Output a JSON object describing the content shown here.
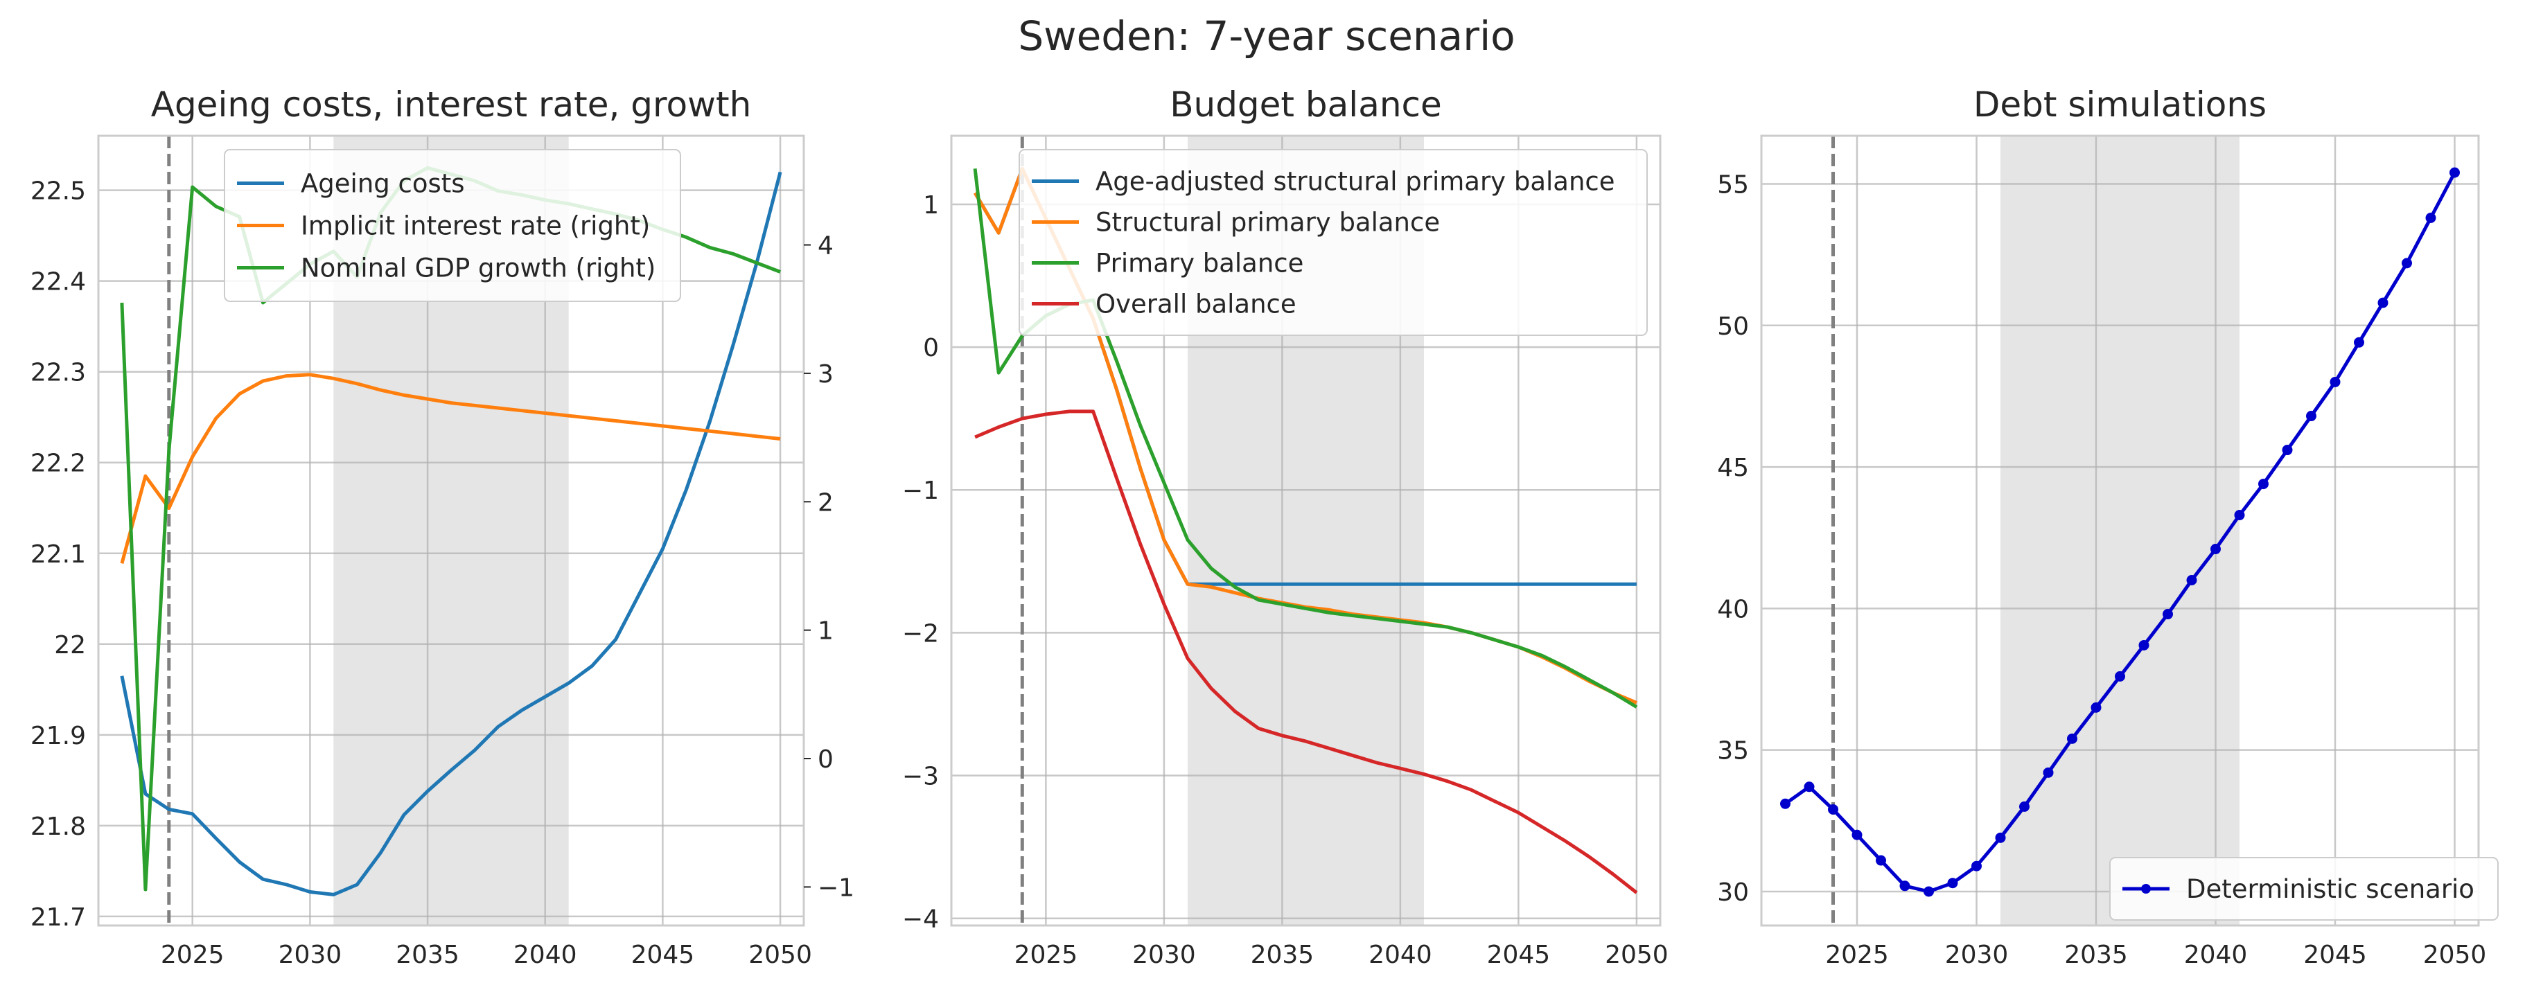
{
  "figure": {
    "suptitle": "Sweden: 7-year scenario"
  },
  "chart_data": [
    {
      "type": "line",
      "title": "Ageing costs, interest rate, growth",
      "xlim": [
        2021.0,
        2051.0
      ],
      "ylim": [
        21.69,
        22.56
      ],
      "ylim_right": [
        -1.3,
        4.85
      ],
      "x_ticks": [
        2025,
        2030,
        2035,
        2040,
        2045,
        2050
      ],
      "y_ticks": [
        21.7,
        21.8,
        21.9,
        22.0,
        22.1,
        22.2,
        22.3,
        22.4,
        22.5
      ],
      "y_ticks_right": [
        -1,
        0,
        1,
        2,
        3,
        4
      ],
      "shaded_x": [
        2031,
        2041
      ],
      "vline_x": 2024,
      "legend_position": "upper center",
      "grid": true,
      "series": [
        {
          "name": "Ageing costs",
          "color": "#1f77b4",
          "axis": "left",
          "x": [
            2022,
            2023,
            2024,
            2025,
            2026,
            2027,
            2028,
            2029,
            2030,
            2031,
            2032,
            2033,
            2034,
            2035,
            2036,
            2037,
            2038,
            2039,
            2040,
            2041,
            2042,
            2043,
            2044,
            2045,
            2046,
            2047,
            2048,
            2049,
            2050
          ],
          "values": [
            21.965,
            21.835,
            21.818,
            21.813,
            21.786,
            21.76,
            21.741,
            21.735,
            21.727,
            21.724,
            21.735,
            21.77,
            21.812,
            21.838,
            21.861,
            21.883,
            21.909,
            21.927,
            21.942,
            21.957,
            21.976,
            22.005,
            22.055,
            22.105,
            22.17,
            22.245,
            22.33,
            22.42,
            22.52
          ]
        },
        {
          "name": "Implicit interest rate (right)",
          "color": "#ff7f0e",
          "axis": "right",
          "x": [
            2022,
            2023,
            2024,
            2025,
            2026,
            2027,
            2028,
            2029,
            2030,
            2031,
            2032,
            2033,
            2034,
            2035,
            2036,
            2037,
            2038,
            2039,
            2040,
            2041,
            2042,
            2043,
            2044,
            2045,
            2046,
            2047,
            2048,
            2049,
            2050
          ],
          "values": [
            1.52,
            2.2,
            1.95,
            2.35,
            2.65,
            2.84,
            2.94,
            2.98,
            2.99,
            2.96,
            2.92,
            2.87,
            2.83,
            2.8,
            2.77,
            2.75,
            2.73,
            2.71,
            2.69,
            2.67,
            2.65,
            2.63,
            2.61,
            2.59,
            2.57,
            2.55,
            2.53,
            2.51,
            2.49
          ]
        },
        {
          "name": "Nominal GDP growth (right)",
          "color": "#2ca02c",
          "axis": "right",
          "x": [
            2022,
            2023,
            2024,
            2025,
            2026,
            2027,
            2028,
            2029,
            2030,
            2031,
            2032,
            2033,
            2034,
            2035,
            2036,
            2037,
            2038,
            2039,
            2040,
            2041,
            2042,
            2043,
            2044,
            2045,
            2046,
            2047,
            2048,
            2049,
            2050
          ],
          "values": [
            3.55,
            -1.02,
            2.4,
            4.45,
            4.3,
            4.22,
            3.55,
            3.7,
            3.85,
            3.95,
            3.75,
            4.25,
            4.5,
            4.6,
            4.55,
            4.5,
            4.42,
            4.39,
            4.35,
            4.32,
            4.28,
            4.24,
            4.19,
            4.12,
            4.06,
            3.98,
            3.93,
            3.86,
            3.79
          ]
        }
      ]
    },
    {
      "type": "line",
      "title": "Budget balance",
      "xlim": [
        2021.0,
        2051.0
      ],
      "ylim": [
        -4.05,
        1.48
      ],
      "x_ticks": [
        2025,
        2030,
        2035,
        2040,
        2045,
        2050
      ],
      "y_ticks": [
        -4,
        -3,
        -2,
        -1,
        0,
        1
      ],
      "shaded_x": [
        2031,
        2041
      ],
      "vline_x": 2024,
      "legend_position": "upper right",
      "grid": true,
      "series": [
        {
          "name": "Age-adjusted structural primary balance",
          "color": "#1f77b4",
          "x": [
            2022,
            2023,
            2024,
            2025,
            2026,
            2027,
            2028,
            2029,
            2030,
            2031,
            2032,
            2033,
            2034,
            2035,
            2036,
            2037,
            2038,
            2039,
            2040,
            2041,
            2042,
            2043,
            2044,
            2045,
            2046,
            2047,
            2048,
            2049,
            2050
          ],
          "values": [
            1.08,
            0.8,
            1.25,
            0.9,
            0.55,
            0.2,
            -0.3,
            -0.85,
            -1.35,
            -1.66,
            -1.66,
            -1.66,
            -1.66,
            -1.66,
            -1.66,
            -1.66,
            -1.66,
            -1.66,
            -1.66,
            -1.66,
            -1.66,
            -1.66,
            -1.66,
            -1.66,
            -1.66,
            -1.66,
            -1.66,
            -1.66,
            -1.66
          ]
        },
        {
          "name": "Structural primary balance",
          "color": "#ff7f0e",
          "x": [
            2022,
            2023,
            2024,
            2025,
            2026,
            2027,
            2028,
            2029,
            2030,
            2031,
            2032,
            2033,
            2034,
            2035,
            2036,
            2037,
            2038,
            2039,
            2040,
            2041,
            2042,
            2043,
            2044,
            2045,
            2046,
            2047,
            2048,
            2049,
            2050
          ],
          "values": [
            1.08,
            0.8,
            1.25,
            0.9,
            0.55,
            0.2,
            -0.3,
            -0.85,
            -1.35,
            -1.66,
            -1.68,
            -1.72,
            -1.76,
            -1.79,
            -1.82,
            -1.84,
            -1.87,
            -1.89,
            -1.91,
            -1.93,
            -1.96,
            -2.0,
            -2.05,
            -2.1,
            -2.17,
            -2.25,
            -2.34,
            -2.42,
            -2.49
          ]
        },
        {
          "name": "Primary balance",
          "color": "#2ca02c",
          "x": [
            2022,
            2023,
            2024,
            2025,
            2026,
            2027,
            2028,
            2029,
            2030,
            2031,
            2032,
            2033,
            2034,
            2035,
            2036,
            2037,
            2038,
            2039,
            2040,
            2041,
            2042,
            2043,
            2044,
            2045,
            2046,
            2047,
            2048,
            2049,
            2050
          ],
          "values": [
            1.25,
            -0.18,
            0.08,
            0.22,
            0.3,
            0.33,
            -0.1,
            -0.55,
            -0.95,
            -1.35,
            -1.55,
            -1.68,
            -1.77,
            -1.8,
            -1.83,
            -1.86,
            -1.88,
            -1.9,
            -1.92,
            -1.94,
            -1.96,
            -2.0,
            -2.05,
            -2.1,
            -2.16,
            -2.24,
            -2.33,
            -2.42,
            -2.52
          ]
        },
        {
          "name": "Overall balance",
          "color": "#d62728",
          "x": [
            2022,
            2023,
            2024,
            2025,
            2026,
            2027,
            2028,
            2029,
            2030,
            2031,
            2032,
            2033,
            2034,
            2035,
            2036,
            2037,
            2038,
            2039,
            2040,
            2041,
            2042,
            2043,
            2044,
            2045,
            2046,
            2047,
            2048,
            2049,
            2050
          ],
          "values": [
            -0.63,
            -0.56,
            -0.5,
            -0.47,
            -0.45,
            -0.45,
            -0.92,
            -1.38,
            -1.8,
            -2.18,
            -2.39,
            -2.55,
            -2.67,
            -2.72,
            -2.76,
            -2.81,
            -2.86,
            -2.91,
            -2.95,
            -2.99,
            -3.04,
            -3.1,
            -3.18,
            -3.26,
            -3.36,
            -3.46,
            -3.57,
            -3.69,
            -3.82
          ]
        }
      ]
    },
    {
      "type": "line",
      "title": "Debt simulations",
      "xlim": [
        2021.0,
        2051.0
      ],
      "ylim": [
        28.8,
        56.7
      ],
      "x_ticks": [
        2025,
        2030,
        2035,
        2040,
        2045,
        2050
      ],
      "y_ticks": [
        30,
        35,
        40,
        45,
        50,
        55
      ],
      "shaded_x": [
        2031,
        2041
      ],
      "vline_x": 2024,
      "legend_position": "lower right",
      "grid": true,
      "series": [
        {
          "name": "Deterministic scenario",
          "color": "#0000cd",
          "markers": true,
          "x": [
            2022,
            2023,
            2024,
            2025,
            2026,
            2027,
            2028,
            2029,
            2030,
            2031,
            2032,
            2033,
            2034,
            2035,
            2036,
            2037,
            2038,
            2039,
            2040,
            2041,
            2042,
            2043,
            2044,
            2045,
            2046,
            2047,
            2048,
            2049,
            2050
          ],
          "values": [
            33.1,
            33.7,
            32.9,
            32.0,
            31.1,
            30.2,
            30.0,
            30.3,
            30.9,
            31.9,
            33.0,
            34.2,
            35.4,
            36.5,
            37.6,
            38.7,
            39.8,
            41.0,
            42.1,
            43.3,
            44.4,
            45.6,
            46.8,
            48.0,
            49.4,
            50.8,
            52.2,
            53.8,
            55.4
          ]
        }
      ]
    }
  ]
}
